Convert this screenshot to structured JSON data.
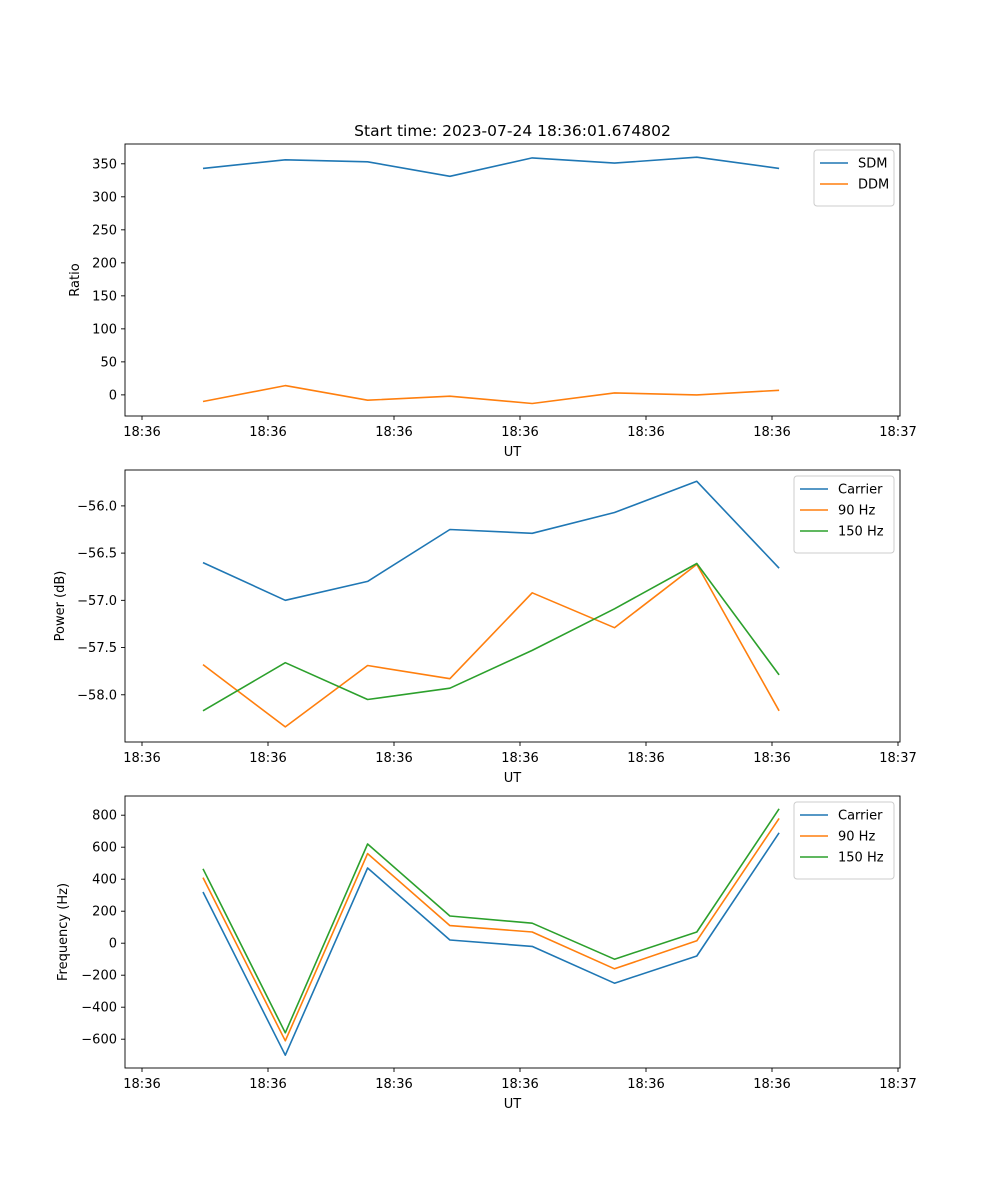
{
  "chart_data": [
    {
      "type": "line",
      "title": "Start time: 2023-07-24 18:36:01.674802",
      "xlabel": "UT",
      "ylabel": "Ratio",
      "xticks": [
        "18:36",
        "18:36",
        "18:36",
        "18:36",
        "18:36",
        "18:36",
        "18:36"
      ],
      "xticks_last": "18:37",
      "ylim": [
        -32,
        380
      ],
      "yticks": [
        0,
        50,
        100,
        150,
        200,
        250,
        300,
        350
      ],
      "legend": "top-right",
      "series": [
        {
          "name": "SDM",
          "color": "#1f77b4",
          "values": [
            343,
            356,
            353,
            331,
            359,
            351,
            360,
            343
          ]
        },
        {
          "name": "DDM",
          "color": "#ff7f0e",
          "values": [
            -10,
            14,
            -8,
            -2,
            -13,
            3,
            0,
            7
          ]
        }
      ]
    },
    {
      "type": "line",
      "title": "",
      "xlabel": "UT",
      "ylabel": "Power (dB)",
      "xticks": [
        "18:36",
        "18:36",
        "18:36",
        "18:36",
        "18:36",
        "18:36",
        "18:36"
      ],
      "xticks_last": "18:37",
      "ylim": [
        -58.5,
        -55.62
      ],
      "yticks": [
        -58.0,
        -57.5,
        -57.0,
        -56.5,
        -56.0
      ],
      "ytick_labels": [
        "−58.0",
        "−57.5",
        "−57.0",
        "−56.5",
        "−56.0"
      ],
      "legend": "top-right",
      "series": [
        {
          "name": "Carrier",
          "color": "#1f77b4",
          "values": [
            -56.6,
            -57.0,
            -56.8,
            -56.25,
            -56.29,
            -56.07,
            -55.74,
            -56.66
          ]
        },
        {
          "name": "90 Hz",
          "color": "#ff7f0e",
          "values": [
            -57.68,
            -58.34,
            -57.69,
            -57.83,
            -56.92,
            -57.29,
            -56.62,
            -58.17
          ]
        },
        {
          "name": "150 Hz",
          "color": "#2ca02c",
          "values": [
            -58.17,
            -57.66,
            -58.05,
            -57.93,
            -57.53,
            -57.09,
            -56.61,
            -57.79
          ]
        }
      ]
    },
    {
      "type": "line",
      "title": "",
      "xlabel": "UT",
      "ylabel": "Frequency (Hz)",
      "xticks": [
        "18:36",
        "18:36",
        "18:36",
        "18:36",
        "18:36",
        "18:36",
        "18:36"
      ],
      "xticks_last": "18:37",
      "ylim": [
        -780,
        920
      ],
      "yticks": [
        -600,
        -400,
        -200,
        0,
        200,
        400,
        600,
        800
      ],
      "ytick_labels": [
        "−600",
        "−400",
        "−200",
        "0",
        "200",
        "400",
        "600",
        "800"
      ],
      "legend": "top-right",
      "series": [
        {
          "name": "Carrier",
          "color": "#1f77b4",
          "values": [
            320,
            -700,
            470,
            20,
            -20,
            -250,
            -80,
            690
          ]
        },
        {
          "name": "90 Hz",
          "color": "#ff7f0e",
          "values": [
            410,
            -610,
            560,
            110,
            70,
            -160,
            15,
            780
          ]
        },
        {
          "name": "150 Hz",
          "color": "#2ca02c",
          "values": [
            465,
            -560,
            620,
            170,
            125,
            -100,
            70,
            840
          ]
        }
      ]
    }
  ]
}
